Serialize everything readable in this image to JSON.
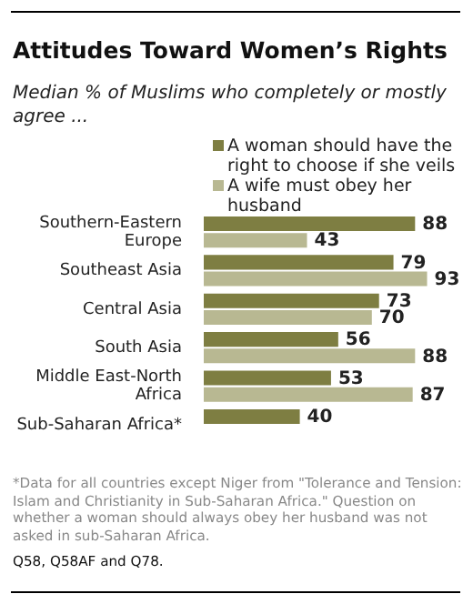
{
  "chart_data": {
    "type": "bar",
    "orientation": "horizontal",
    "title": "Attitudes Toward Women’s Rights",
    "subtitle": "Median % of Muslims who completely or mostly agree ...",
    "categories": [
      "Southern-Eastern Europe",
      "Southeast Asia",
      "Central Asia",
      "South Asia",
      "Middle East-North Africa",
      "Sub-Saharan Africa*"
    ],
    "series": [
      {
        "name": "A woman should have the right to choose if she veils",
        "color": "#7e7e42",
        "values": [
          88,
          79,
          73,
          56,
          53,
          40
        ]
      },
      {
        "name": "A wife must obey her husband",
        "color": "#b8b892",
        "values": [
          43,
          93,
          70,
          88,
          87,
          null
        ]
      }
    ],
    "data_labels": true,
    "legend": "top right",
    "annotations": [
      "*Data for all countries except Niger from \"Tolerance and Tension: Islam and Christianity in Sub-Saharan Africa.\" Question on whether a woman should always obey her husband was not asked in sub-Saharan Africa.",
      "Q58, Q58AF and Q78."
    ]
  }
}
